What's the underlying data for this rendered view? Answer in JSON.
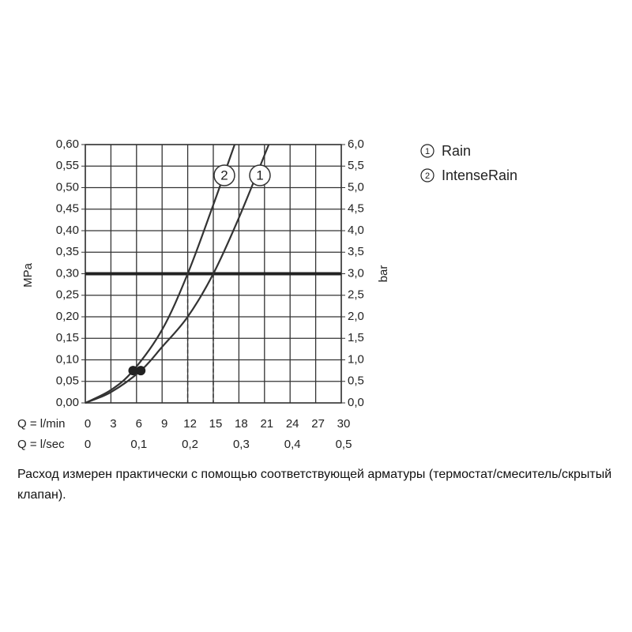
{
  "chart_data": {
    "type": "line",
    "xlabel": "Q = l/min",
    "x2label": "Q = l/sec",
    "ylabel": "MPa",
    "y2label": "bar",
    "xlim": [
      0,
      30
    ],
    "xticks": [
      0,
      3,
      6,
      9,
      12,
      15,
      18,
      21,
      24,
      27,
      30
    ],
    "x2lim": [
      0,
      0.5
    ],
    "x2ticks": [
      0,
      {
        "value": 0.1,
        "label": "0,1"
      },
      {
        "value": 0.2,
        "label": "0,2"
      },
      {
        "value": 0.3,
        "label": "0,3"
      },
      {
        "value": 0.4,
        "label": "0,4"
      },
      {
        "value": 0.5,
        "label": "0,5"
      }
    ],
    "ylim": [
      0,
      0.6
    ],
    "yticks": [
      {
        "value": 0,
        "label": "0,00"
      },
      {
        "value": 0.05,
        "label": "0,05"
      },
      {
        "value": 0.1,
        "label": "0,10"
      },
      {
        "value": 0.15,
        "label": "0,15"
      },
      {
        "value": 0.2,
        "label": "0,20"
      },
      {
        "value": 0.25,
        "label": "0,25"
      },
      {
        "value": 0.3,
        "label": "0,30"
      },
      {
        "value": 0.35,
        "label": "0,35"
      },
      {
        "value": 0.4,
        "label": "0,40"
      },
      {
        "value": 0.45,
        "label": "0,45"
      },
      {
        "value": 0.5,
        "label": "0,50"
      },
      {
        "value": 0.55,
        "label": "0,55"
      },
      {
        "value": 0.6,
        "label": "0,60"
      }
    ],
    "y2lim": [
      0,
      6
    ],
    "y2ticks": [
      {
        "value": 0,
        "label": "0,0"
      },
      {
        "value": 0.5,
        "label": "0,5"
      },
      {
        "value": 1,
        "label": "1,0"
      },
      {
        "value": 1.5,
        "label": "1,5"
      },
      {
        "value": 2,
        "label": "2,0"
      },
      {
        "value": 2.5,
        "label": "2,5"
      },
      {
        "value": 3,
        "label": "3,0"
      },
      {
        "value": 3.5,
        "label": "3,5"
      },
      {
        "value": 4,
        "label": "4,0"
      },
      {
        "value": 4.5,
        "label": "4,5"
      },
      {
        "value": 5,
        "label": "5,0"
      },
      {
        "value": 5.5,
        "label": "5,5"
      },
      {
        "value": 6,
        "label": "6,0"
      }
    ],
    "grid": true,
    "reference": {
      "y": 0.3,
      "x": [
        12,
        15
      ]
    },
    "series": [
      {
        "name": "Rain",
        "label": "1",
        "color": "#333333",
        "x": [
          0,
          3,
          6.5,
          9,
          12,
          15,
          18,
          21.5
        ],
        "values": [
          0,
          0.025,
          0.075,
          0.13,
          0.2,
          0.3,
          0.43,
          0.6
        ],
        "point": {
          "x": 6.5,
          "y": 0.075
        }
      },
      {
        "name": "IntenseRain",
        "label": "2",
        "color": "#333333",
        "x": [
          0,
          3,
          5.6,
          9,
          12,
          15,
          17.5
        ],
        "values": [
          0,
          0.03,
          0.075,
          0.17,
          0.3,
          0.46,
          0.6
        ],
        "point": {
          "x": 5.6,
          "y": 0.075
        }
      }
    ]
  },
  "note": "Расход измерен практически с помощью соответствующей арматуры (термостат/смеситель/скрытый клапан)."
}
